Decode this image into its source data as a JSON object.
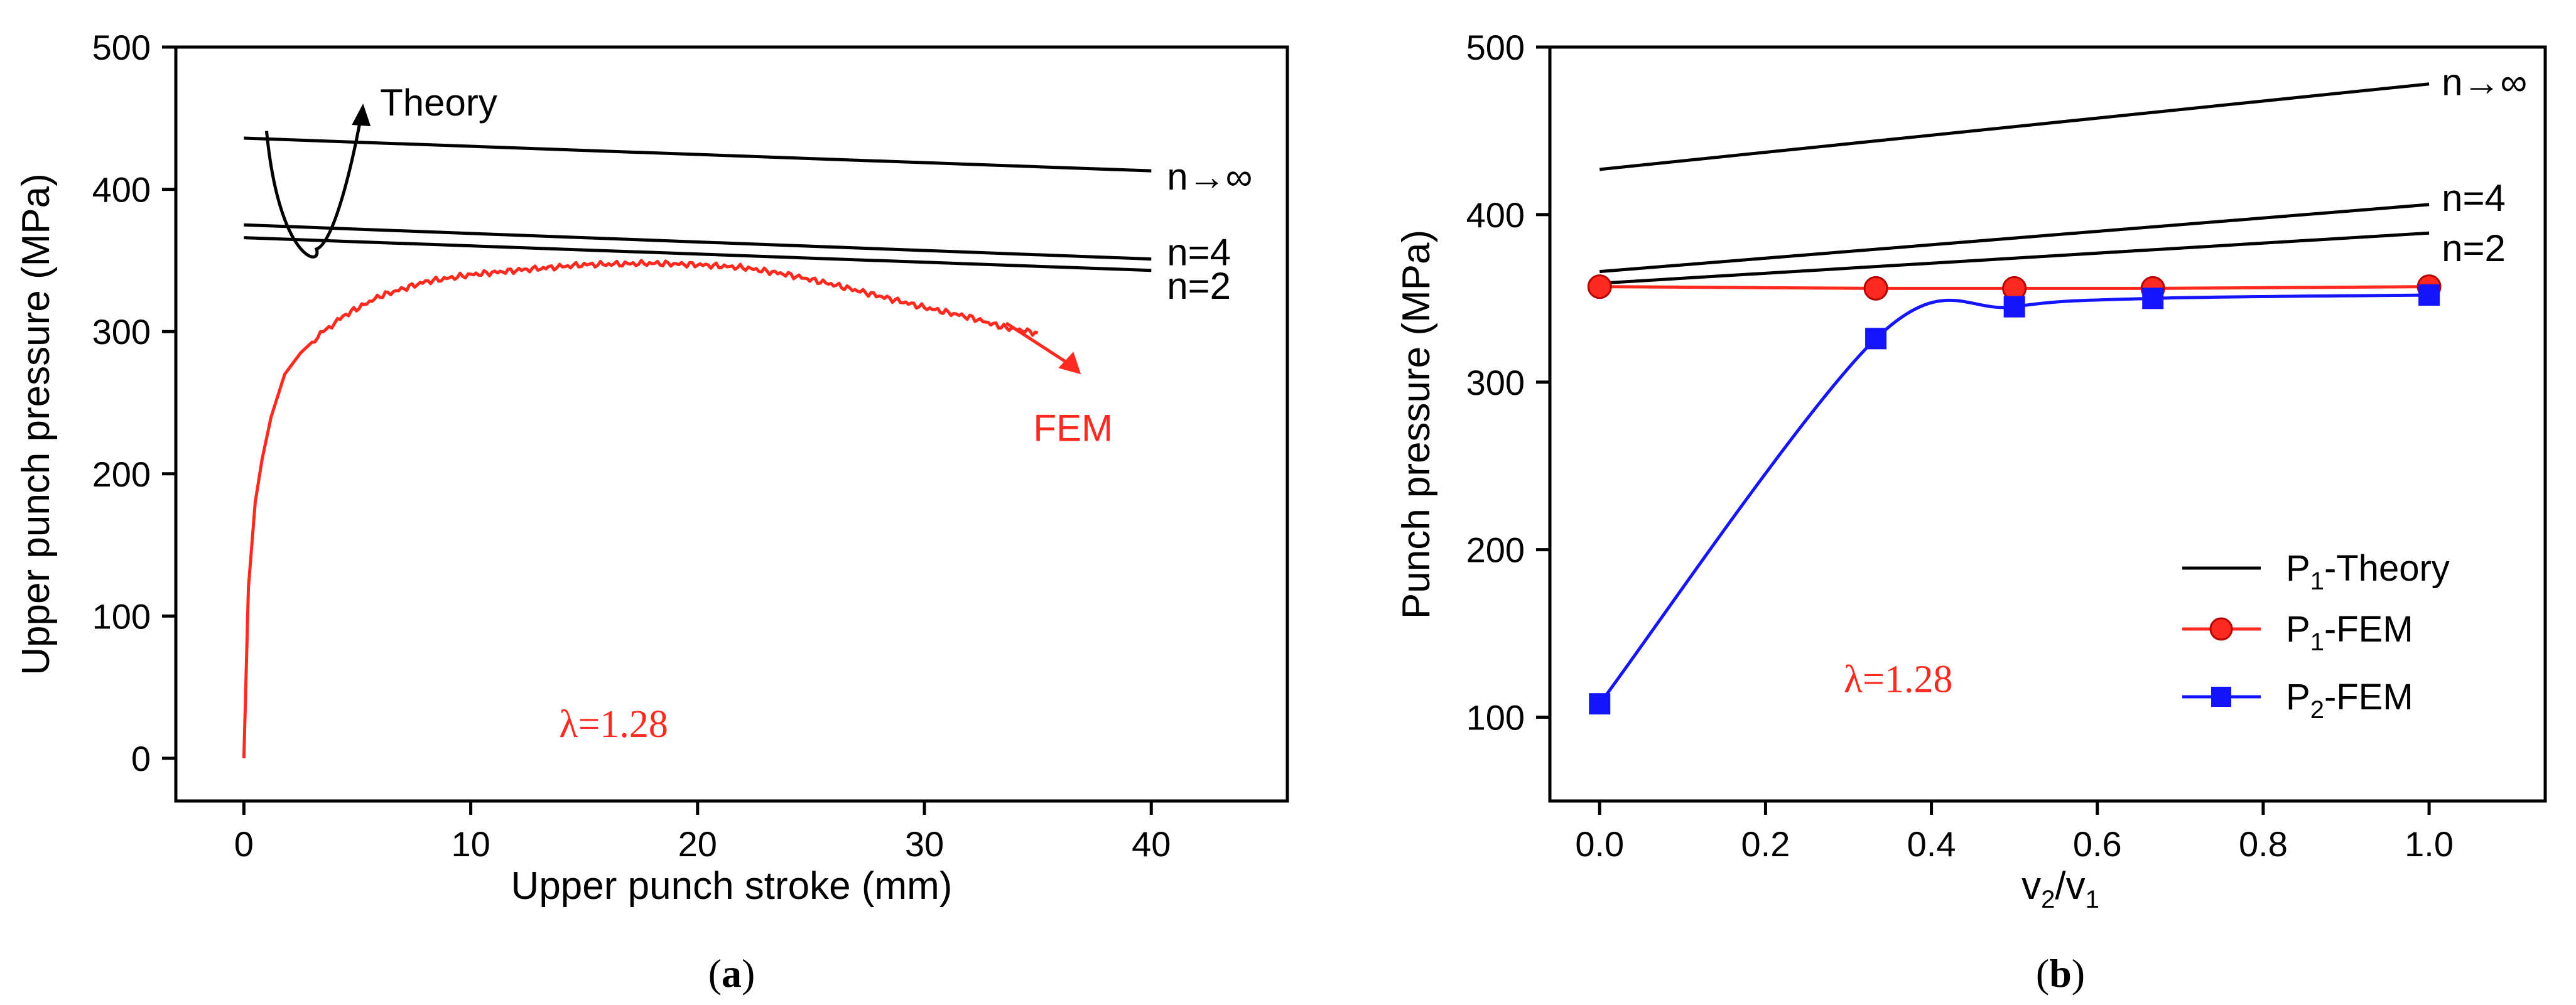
{
  "colors": {
    "theory": "#000000",
    "fem": "#ff2a1f",
    "p2": "#1414ff"
  },
  "chart_data": [
    {
      "type": "line",
      "caption": "(a)",
      "caption_letter": "a",
      "xlabel": "Upper punch stroke (mm)",
      "ylabel": "Upper punch pressure (MPa)",
      "xlim": [
        -3,
        46
      ],
      "ylim": [
        -30,
        500
      ],
      "xticks": [
        0,
        10,
        20,
        30,
        40
      ],
      "yticks": [
        0,
        100,
        200,
        300,
        400,
        500
      ],
      "series": [
        {
          "name": "n→∞",
          "label": "n→∞",
          "x": [
            0,
            40
          ],
          "y": [
            436,
            413
          ]
        },
        {
          "name": "n=4",
          "label": "n=4",
          "x": [
            0,
            40
          ],
          "y": [
            375,
            351
          ]
        },
        {
          "name": "n=2",
          "label": "n=2",
          "x": [
            0,
            40
          ],
          "y": [
            366,
            343
          ]
        },
        {
          "name": "FEM",
          "label": "FEM",
          "x": [
            0,
            0.2,
            0.5,
            0.8,
            1.2,
            1.8,
            2.5,
            3.5,
            4.5,
            6,
            8,
            10,
            12,
            15,
            18,
            20,
            22,
            24,
            26,
            28,
            30,
            32,
            33.5,
            35
          ],
          "y": [
            0,
            120,
            180,
            210,
            240,
            270,
            285,
            300,
            312,
            325,
            335,
            340,
            343,
            347,
            348,
            347,
            345,
            340,
            333,
            325,
            317,
            310,
            303,
            299
          ]
        }
      ],
      "annotations": {
        "theory": "Theory",
        "fem": "FEM",
        "lambda": "λ=1.28"
      }
    },
    {
      "type": "line",
      "caption": "(b)",
      "caption_letter": "b",
      "xlabel": "v2/v1",
      "ylabel": "Punch pressure (MPa)",
      "xlim": [
        -0.06,
        1.14
      ],
      "ylim": [
        50,
        500
      ],
      "xticks": [
        0.0,
        0.2,
        0.4,
        0.6,
        0.8,
        1.0
      ],
      "xtick_labels": [
        "0.0",
        "0.2",
        "0.4",
        "0.6",
        "0.8",
        "1.0"
      ],
      "yticks": [
        100,
        200,
        300,
        400,
        500
      ],
      "series": [
        {
          "name": "n→∞",
          "label": "n→∞",
          "x": [
            0,
            1
          ],
          "y": [
            427,
            478
          ]
        },
        {
          "name": "n=4",
          "label": "n=4",
          "x": [
            0,
            1
          ],
          "y": [
            366,
            406
          ]
        },
        {
          "name": "n=2",
          "label": "n=2",
          "x": [
            0,
            1
          ],
          "y": [
            359,
            389
          ]
        },
        {
          "name": "P1-FEM",
          "x": [
            0,
            0.333,
            0.5,
            0.667,
            1.0
          ],
          "y": [
            357,
            356,
            356,
            356,
            357
          ]
        },
        {
          "name": "P2-FEM",
          "x": [
            0,
            0.333,
            0.5,
            0.667,
            1.0
          ],
          "y": [
            108,
            326,
            345,
            350,
            352
          ]
        }
      ],
      "legend": [
        {
          "text": "P",
          "sub": "1",
          "rest": "-Theory"
        },
        {
          "text": "P",
          "sub": "1",
          "rest": "-FEM"
        },
        {
          "text": "P",
          "sub": "2",
          "rest": "-FEM"
        }
      ],
      "annotations": {
        "lambda": "λ=1.28"
      }
    }
  ]
}
